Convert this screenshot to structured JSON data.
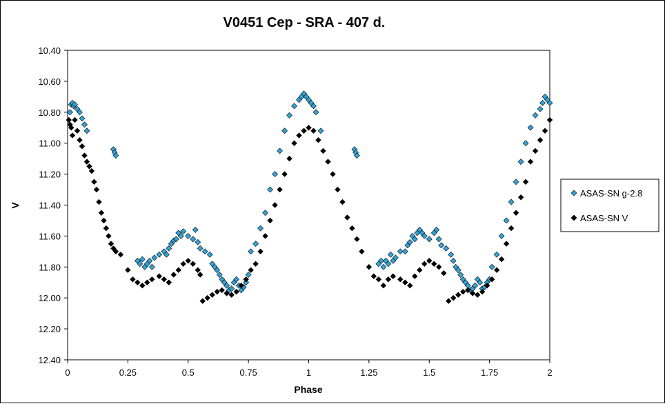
{
  "chart_data": {
    "type": "scatter",
    "title": "V0451 Cep - SRA - 407 d.",
    "xlabel": "Phase",
    "ylabel": "V",
    "xlim": [
      0,
      2
    ],
    "ylim": [
      10.4,
      12.4
    ],
    "y_inverted": true,
    "grid": false,
    "legend_position": "right",
    "x_ticks": [
      "0",
      "0.25",
      "0.5",
      "0.75",
      "1",
      "1.25",
      "1.5",
      "1.75",
      "2"
    ],
    "y_ticks": [
      "10.40",
      "10.60",
      "10.80",
      "11.00",
      "11.20",
      "11.40",
      "11.60",
      "11.80",
      "12.00",
      "12.20",
      "12.40"
    ],
    "series": [
      {
        "name": "ASAS-SN g-2.8",
        "color": "#33a3d6",
        "marker": "diamond",
        "x": [
          0.01,
          0.015,
          0.02,
          0.025,
          0.03,
          0.04,
          0.05,
          0.06,
          0.07,
          0.08,
          0.19,
          0.195,
          0.2,
          0.29,
          0.3,
          0.31,
          0.32,
          0.33,
          0.34,
          0.35,
          0.36,
          0.38,
          0.4,
          0.41,
          0.42,
          0.43,
          0.44,
          0.45,
          0.46,
          0.47,
          0.48,
          0.5,
          0.52,
          0.53,
          0.54,
          0.55,
          0.57,
          0.59,
          0.6,
          0.61,
          0.62,
          0.63,
          0.64,
          0.65,
          0.66,
          0.67,
          0.68,
          0.69,
          0.7,
          0.71,
          0.72,
          0.73,
          0.74,
          0.75,
          0.76,
          0.78,
          0.8,
          0.82,
          0.84,
          0.86,
          0.88,
          0.9,
          0.92,
          0.94,
          0.96,
          0.97,
          0.98,
          0.99,
          1.0,
          1.01,
          1.02,
          1.03,
          1.05,
          1.19,
          1.195,
          1.2,
          1.29,
          1.3,
          1.31,
          1.32,
          1.33,
          1.34,
          1.35,
          1.36,
          1.38,
          1.4,
          1.41,
          1.42,
          1.43,
          1.44,
          1.45,
          1.46,
          1.47,
          1.48,
          1.5,
          1.52,
          1.53,
          1.54,
          1.55,
          1.57,
          1.59,
          1.6,
          1.61,
          1.62,
          1.63,
          1.64,
          1.65,
          1.66,
          1.67,
          1.68,
          1.69,
          1.7,
          1.71,
          1.72,
          1.73,
          1.74,
          1.75,
          1.76,
          1.78,
          1.8,
          1.82,
          1.84,
          1.86,
          1.88,
          1.9,
          1.92,
          1.94,
          1.96,
          1.97,
          1.98,
          1.99,
          2.0
        ],
        "y": [
          10.8,
          10.75,
          10.74,
          10.76,
          10.75,
          10.78,
          10.8,
          10.84,
          10.88,
          10.92,
          11.04,
          11.06,
          11.08,
          11.76,
          11.78,
          11.75,
          11.8,
          11.78,
          11.76,
          11.8,
          11.74,
          11.72,
          11.7,
          11.72,
          11.68,
          11.65,
          11.63,
          11.62,
          11.58,
          11.6,
          11.57,
          11.6,
          11.62,
          11.56,
          11.64,
          11.68,
          11.7,
          11.72,
          11.78,
          11.8,
          11.82,
          11.85,
          11.88,
          11.9,
          11.92,
          11.95,
          11.94,
          11.9,
          11.88,
          11.92,
          11.95,
          11.93,
          11.9,
          11.85,
          11.7,
          11.65,
          11.55,
          11.45,
          11.3,
          11.2,
          11.05,
          10.92,
          10.82,
          10.76,
          10.72,
          10.7,
          10.68,
          10.7,
          10.72,
          10.74,
          10.76,
          10.8,
          10.92,
          11.04,
          11.06,
          11.08,
          11.78,
          11.76,
          11.8,
          11.76,
          11.78,
          11.72,
          11.76,
          11.74,
          11.7,
          11.7,
          11.66,
          11.64,
          11.6,
          11.62,
          11.58,
          11.56,
          11.58,
          11.6,
          11.62,
          11.58,
          11.56,
          11.62,
          11.66,
          11.68,
          11.72,
          11.76,
          11.8,
          11.82,
          11.85,
          11.88,
          11.9,
          11.92,
          11.95,
          11.94,
          11.92,
          11.88,
          11.9,
          11.94,
          11.93,
          11.9,
          11.88,
          11.8,
          11.72,
          11.6,
          11.5,
          11.38,
          11.25,
          11.12,
          11.0,
          10.9,
          10.82,
          10.78,
          10.74,
          10.7,
          10.72,
          10.74
        ]
      },
      {
        "name": "ASAS-SN V",
        "color": "#000000",
        "marker": "diamond",
        "x": [
          0.005,
          0.01,
          0.015,
          0.02,
          0.03,
          0.04,
          0.05,
          0.06,
          0.07,
          0.08,
          0.09,
          0.1,
          0.11,
          0.12,
          0.13,
          0.14,
          0.15,
          0.16,
          0.17,
          0.18,
          0.19,
          0.2,
          0.22,
          0.25,
          0.27,
          0.29,
          0.31,
          0.33,
          0.35,
          0.38,
          0.4,
          0.42,
          0.44,
          0.46,
          0.48,
          0.5,
          0.52,
          0.54,
          0.55,
          0.56,
          0.58,
          0.6,
          0.62,
          0.64,
          0.66,
          0.68,
          0.7,
          0.72,
          0.74,
          0.76,
          0.78,
          0.8,
          0.82,
          0.84,
          0.86,
          0.88,
          0.9,
          0.92,
          0.94,
          0.96,
          0.98,
          1.0,
          1.02,
          1.04,
          1.06,
          1.08,
          1.1,
          1.12,
          1.14,
          1.16,
          1.18,
          1.2,
          1.22,
          1.25,
          1.27,
          1.29,
          1.31,
          1.33,
          1.35,
          1.38,
          1.4,
          1.42,
          1.44,
          1.46,
          1.48,
          1.5,
          1.52,
          1.54,
          1.56,
          1.58,
          1.6,
          1.62,
          1.64,
          1.66,
          1.68,
          1.7,
          1.72,
          1.74,
          1.76,
          1.78,
          1.8,
          1.82,
          1.84,
          1.86,
          1.88,
          1.9,
          1.92,
          1.94,
          1.96,
          1.98,
          2.0
        ],
        "y": [
          10.85,
          10.88,
          10.9,
          10.95,
          10.85,
          10.92,
          10.98,
          11.02,
          11.08,
          11.12,
          11.15,
          11.18,
          11.25,
          11.3,
          11.38,
          11.45,
          11.5,
          11.55,
          11.6,
          11.65,
          11.68,
          11.7,
          11.72,
          11.82,
          11.88,
          11.9,
          11.92,
          11.9,
          11.88,
          11.86,
          11.88,
          11.9,
          11.85,
          11.82,
          11.78,
          11.76,
          11.78,
          11.82,
          11.85,
          12.02,
          12.0,
          11.98,
          11.96,
          11.95,
          11.97,
          11.98,
          11.96,
          11.92,
          11.88,
          11.82,
          11.78,
          11.7,
          11.6,
          11.5,
          11.4,
          11.3,
          11.2,
          11.1,
          11.0,
          10.95,
          10.92,
          10.9,
          10.92,
          10.98,
          11.05,
          11.12,
          11.2,
          11.3,
          11.38,
          11.48,
          11.55,
          11.62,
          11.7,
          11.8,
          11.86,
          11.88,
          11.92,
          11.88,
          11.86,
          11.88,
          11.9,
          11.92,
          11.86,
          11.82,
          11.78,
          11.76,
          11.78,
          11.8,
          11.84,
          12.02,
          12.0,
          11.98,
          11.96,
          11.95,
          11.97,
          11.98,
          11.96,
          11.92,
          11.88,
          11.82,
          11.75,
          11.65,
          11.55,
          11.45,
          11.35,
          11.25,
          11.12,
          11.05,
          10.98,
          10.92,
          10.85
        ]
      }
    ]
  }
}
